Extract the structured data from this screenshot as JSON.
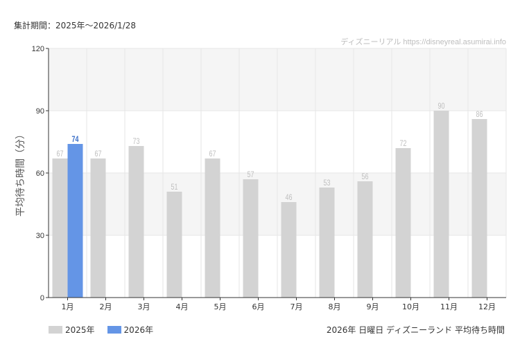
{
  "header": {
    "period": "集計期間：2025年～2026/1/28",
    "watermark": "ディズニーリアル https://disneyreal.asumirai.info"
  },
  "footer": {
    "caption": "2026年 日曜日 ディズニーランド 平均待ち時間"
  },
  "colors": {
    "series_2025": "#d3d3d3",
    "series_2026": "#6495e6",
    "label_2025": "#bfbfbf",
    "label_2026": "#3c6fc8",
    "band": "#f5f5f5",
    "grid": "#e6e6e6",
    "axis": "#333333"
  },
  "chart_data": {
    "type": "bar",
    "title": "",
    "xlabel": "",
    "ylabel": "平均待ち時間（分）",
    "ylim": [
      0,
      120
    ],
    "yticks": [
      0,
      30,
      60,
      90,
      120
    ],
    "grid": true,
    "legend_position": "bottom-left",
    "categories": [
      "1月",
      "2月",
      "3月",
      "4月",
      "5月",
      "6月",
      "7月",
      "8月",
      "9月",
      "10月",
      "11月",
      "12月"
    ],
    "series": [
      {
        "name": "2025年",
        "values": [
          67,
          67,
          73,
          51,
          67,
          57,
          46,
          53,
          56,
          72,
          90,
          86
        ]
      },
      {
        "name": "2026年",
        "values": [
          74,
          null,
          null,
          null,
          null,
          null,
          null,
          null,
          null,
          null,
          null,
          null
        ]
      }
    ]
  }
}
